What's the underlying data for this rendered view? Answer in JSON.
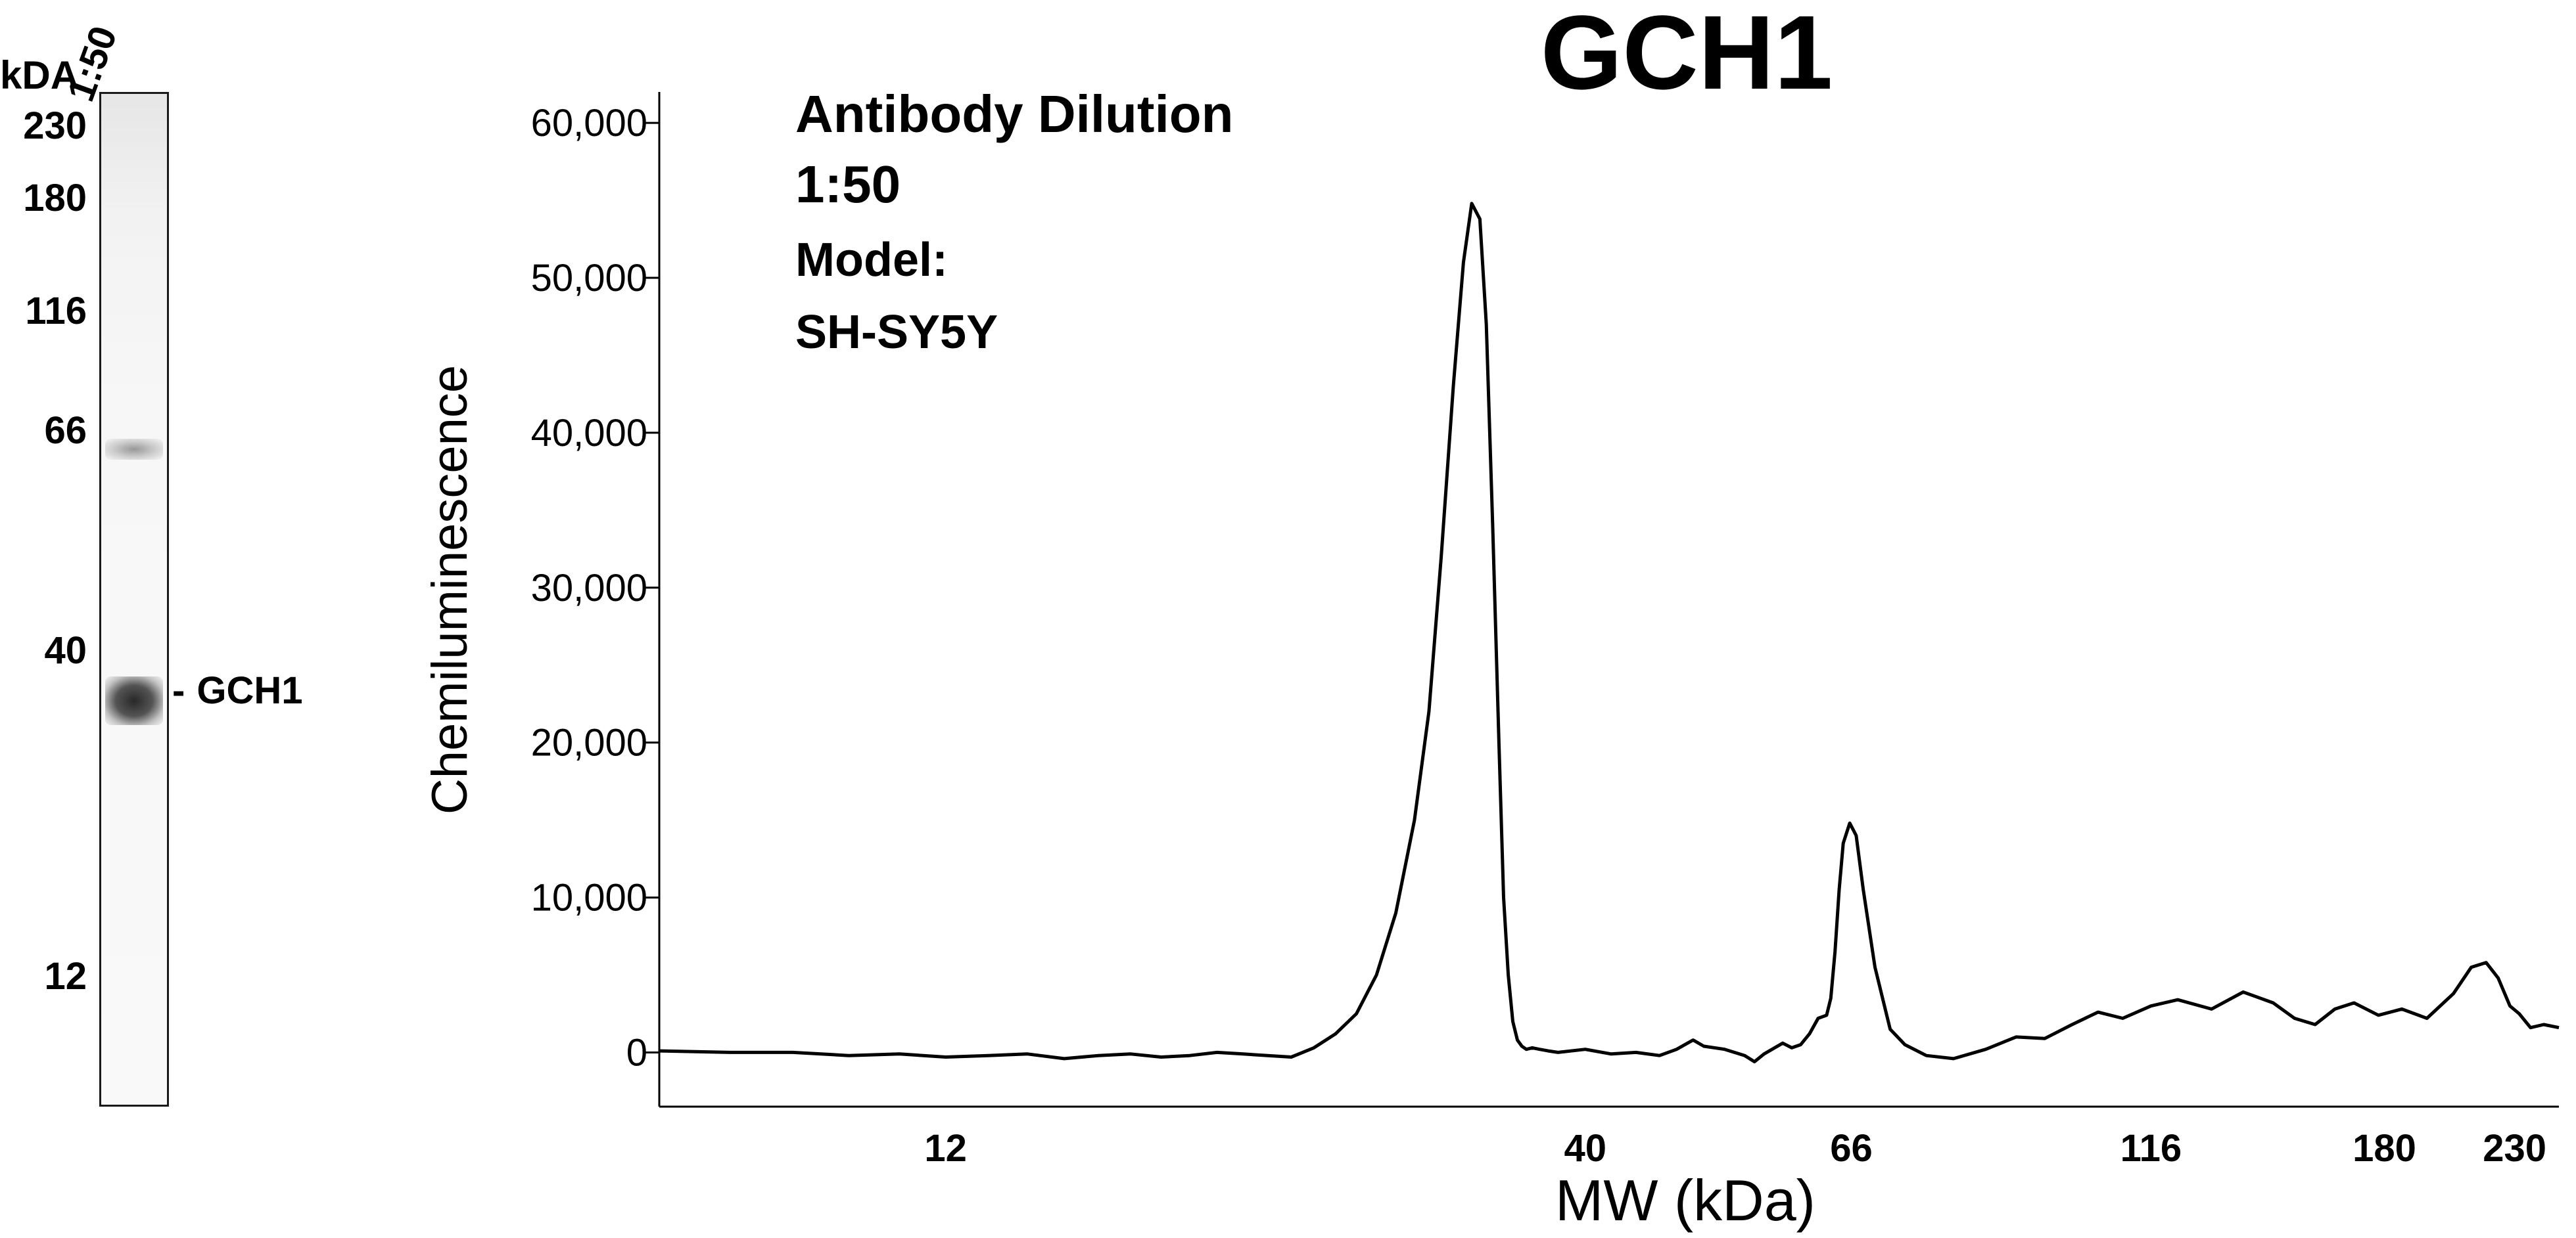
{
  "lane_panel": {
    "lane_label": "1:50",
    "unit_label": "kDA",
    "mw_markers": [
      "230",
      "180",
      "116",
      "66",
      "40",
      "12"
    ],
    "band_label": "GCH1"
  },
  "chart_data": {
    "type": "line",
    "title": "GCH1",
    "xlabel": "MW (kDa)",
    "ylabel": "Chemiluminescence",
    "x_scale": "log",
    "xticks": [
      12,
      40,
      66,
      116,
      180,
      230
    ],
    "xtick_labels": [
      "12",
      "40",
      "66",
      "116",
      "180",
      "230"
    ],
    "xlim": [
      7,
      250
    ],
    "ylim": [
      -3500,
      62000
    ],
    "yticks": [
      0,
      10000,
      20000,
      30000,
      40000,
      50000,
      60000
    ],
    "ytick_labels": [
      "0",
      "10,000",
      "20,000",
      "30,000",
      "40,000",
      "50,000",
      "60,000"
    ],
    "grid": false,
    "annotations": [
      "Antibody Dilution",
      "1:50",
      "Model:",
      "SH-SY5Y"
    ],
    "series": [
      {
        "x": [
          7.0,
          8.0,
          9.0,
          10.0,
          11.0,
          12.0,
          13.0,
          14.0,
          15.0,
          16.0,
          17.0,
          18.0,
          19.0,
          20.0,
          21.0,
          22.0,
          23.0,
          24.0,
          25.0,
          26.0,
          27.0,
          28.0,
          29.0,
          29.8,
          30.5,
          31.2,
          31.8,
          32.3,
          32.8,
          33.2,
          33.6,
          34.0,
          34.3,
          34.6,
          34.9,
          35.2,
          35.5,
          35.8,
          36.2,
          36.7,
          37.3,
          38.0,
          40.0,
          42.0,
          44.0,
          46.0,
          47.5,
          49.0,
          50.0,
          52.0,
          54.0,
          55.0,
          56.0,
          58.0,
          59.0,
          60.0,
          61.0,
          62.0,
          63.0,
          63.5,
          64.0,
          64.5,
          65.0,
          65.8,
          66.6,
          67.5,
          69.0,
          71.0,
          73.0,
          76.0,
          80.0,
          85.0,
          90.0,
          95.0,
          100.0,
          105.0,
          110.0,
          116.0,
          122.0,
          130.0,
          138.0,
          146.0,
          152.0,
          158.0,
          164.0,
          170.0,
          178.0,
          186.0,
          195.0,
          205.0,
          212.0,
          218.0,
          223.0,
          228.0,
          232.0,
          237.0,
          243.0,
          250.0
        ],
        "y": [
          100,
          0,
          0,
          -200,
          -100,
          -300,
          -200,
          -100,
          -400,
          -200,
          -100,
          -300,
          -200,
          0,
          -100,
          -200,
          -300,
          300,
          1200,
          2500,
          5000,
          9000,
          15000,
          22000,
          32000,
          43000,
          51000,
          54800,
          53800,
          47000,
          34000,
          20000,
          10000,
          5000,
          2000,
          800,
          400,
          200,
          300,
          200,
          100,
          0,
          200,
          -100,
          0,
          -200,
          200,
          800,
          400,
          200,
          -200,
          -600,
          -100,
          600,
          300,
          500,
          1200,
          2200,
          2400,
          3500,
          6500,
          10500,
          13500,
          14800,
          14000,
          10500,
          5500,
          1500,
          500,
          -200,
          -400,
          200,
          1000,
          900,
          1800,
          2600,
          2200,
          3000,
          3400,
          2800,
          3900,
          3200,
          2200,
          1800,
          2800,
          3200,
          2400,
          2800,
          2200,
          3800,
          5500,
          5800,
          4800,
          3000,
          2500,
          1600,
          1800,
          1600
        ]
      }
    ]
  }
}
